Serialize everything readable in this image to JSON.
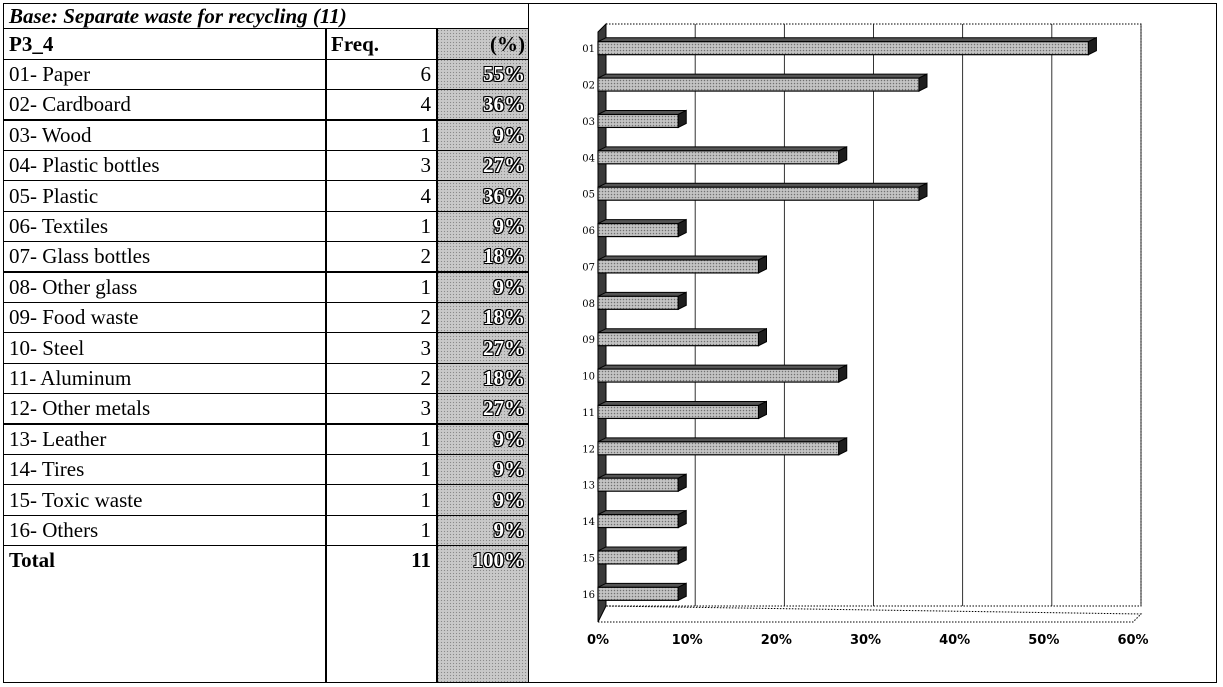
{
  "table": {
    "title": "Base: Separate waste for recycling (11)",
    "headers": {
      "label": "P3_4",
      "freq": "Freq.",
      "pct": "(%)"
    },
    "rows": [
      {
        "label": "01- Paper",
        "freq": "6",
        "pct": "55%"
      },
      {
        "label": "02- Cardboard",
        "freq": "4",
        "pct": "36%"
      },
      {
        "label": "03- Wood",
        "freq": "1",
        "pct": "9%"
      },
      {
        "label": "04- Plastic bottles",
        "freq": "3",
        "pct": "27%"
      },
      {
        "label": "05- Plastic",
        "freq": "4",
        "pct": "36%"
      },
      {
        "label": "06- Textiles",
        "freq": "1",
        "pct": "9%"
      },
      {
        "label": "07- Glass bottles",
        "freq": "2",
        "pct": "18%"
      },
      {
        "label": "08- Other glass",
        "freq": "1",
        "pct": "9%"
      },
      {
        "label": "09- Food waste",
        "freq": "2",
        "pct": "18%"
      },
      {
        "label": "10- Steel",
        "freq": "3",
        "pct": "27%"
      },
      {
        "label": "11- Aluminum",
        "freq": "2",
        "pct": "18%"
      },
      {
        "label": "12- Other metals",
        "freq": "3",
        "pct": "27%"
      },
      {
        "label": "13- Leather",
        "freq": "1",
        "pct": "9%"
      },
      {
        "label": "14- Tires",
        "freq": "1",
        "pct": "9%"
      },
      {
        "label": "15- Toxic waste",
        "freq": "1",
        "pct": "9%"
      },
      {
        "label": "16- Others",
        "freq": "1",
        "pct": "9%"
      }
    ],
    "total": {
      "label": "Total",
      "freq": "11",
      "pct": "100%"
    }
  },
  "chart_data": {
    "type": "bar",
    "orientation": "horizontal",
    "categories": [
      "01",
      "02",
      "03",
      "04",
      "05",
      "06",
      "07",
      "08",
      "09",
      "10",
      "11",
      "12",
      "13",
      "14",
      "15",
      "16"
    ],
    "values": [
      55,
      36,
      9,
      27,
      36,
      9,
      18,
      9,
      18,
      27,
      18,
      27,
      9,
      9,
      9,
      9
    ],
    "xlim": [
      0,
      60
    ],
    "xticks": [
      "0%",
      "10%",
      "20%",
      "30%",
      "40%",
      "50%",
      "60%"
    ],
    "grid": true,
    "style": "3d"
  }
}
